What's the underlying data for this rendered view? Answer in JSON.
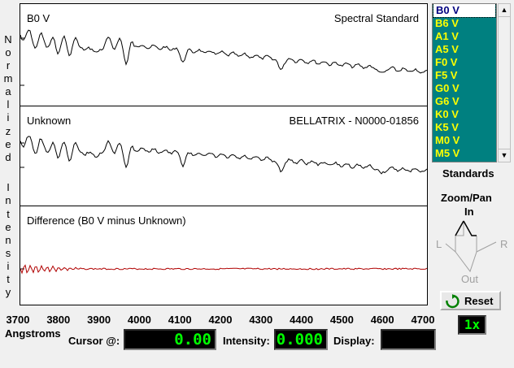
{
  "plots": {
    "top": {
      "label": "B0 V",
      "title": "Spectral Standard"
    },
    "middle": {
      "label": "Unknown",
      "title": "BELLATRIX - N0000-01856"
    },
    "bottom": {
      "label": "Difference (B0 V minus Unknown)"
    }
  },
  "y_axis_letters": [
    "N",
    "o",
    "r",
    "m",
    "a",
    "l",
    "i",
    "z",
    "e",
    "d",
    "",
    "I",
    "n",
    "t",
    "e",
    "n",
    "s",
    "i",
    "t",
    "y"
  ],
  "x_ticks": [
    "3700",
    "3800",
    "3900",
    "4000",
    "4100",
    "4200",
    "4300",
    "4400",
    "4500",
    "4600",
    "4700"
  ],
  "x_axis_label": "Angstroms",
  "standards": {
    "items": [
      "B0 V",
      "B6 V",
      "A1 V",
      "A5 V",
      "F0 V",
      "F5 V",
      "G0 V",
      "G6 V",
      "K0 V",
      "K5 V",
      "M0 V",
      "M5 V"
    ],
    "selected": "B0 V",
    "caption": "Standards"
  },
  "zoom": {
    "title": "Zoom/Pan",
    "in": "In",
    "out": "Out",
    "left": "L",
    "right": "R"
  },
  "reset_label": "Reset",
  "zoom_level": "1x",
  "readouts": {
    "cursor_label": "Cursor @:",
    "cursor_value": "0.00",
    "intensity_label": "Intensity:",
    "intensity_value": "0.000",
    "display_label": "Display:",
    "display_value": ""
  },
  "colors": {
    "list_bg": "#008080",
    "list_fg": "#ffff00",
    "diff_line": "#b00000",
    "lcd_fg": "#00ff00"
  }
}
